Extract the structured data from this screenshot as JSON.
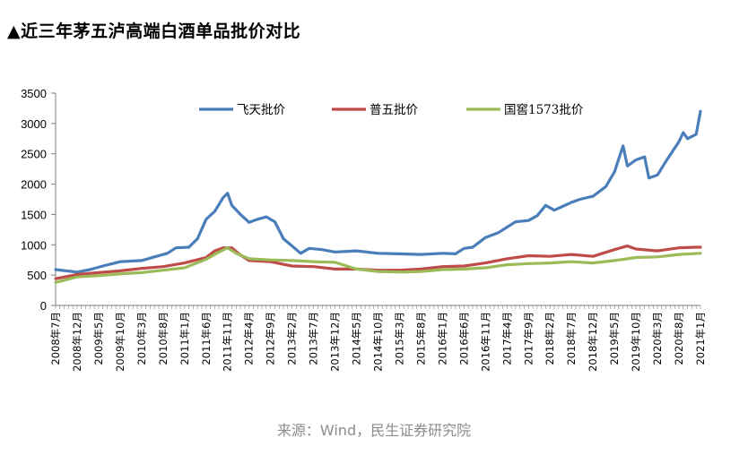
{
  "title": "▲近三年茅五泸高端白酒单品批价对比",
  "source": "来源：Wind，民生证券研究院",
  "chart_data": {
    "type": "line",
    "title": "▲近三年茅五泸高端白酒单品批价对比",
    "xlabel": "",
    "ylabel": "",
    "ylim": [
      0,
      3500
    ],
    "yticks": [
      0,
      500,
      1000,
      1500,
      2000,
      2500,
      3000,
      3500
    ],
    "grid": false,
    "legend_position": "top",
    "x_range": [
      "2008-07",
      "2021-01"
    ],
    "x_tick_labels": [
      "2008年7月",
      "2008年12月",
      "2009年5月",
      "2009年10月",
      "2010年3月",
      "2010年8月",
      "2011年1月",
      "2011年6月",
      "2011年11月",
      "2012年4月",
      "2012年9月",
      "2013年2月",
      "2013年7月",
      "2013年12月",
      "2014年5月",
      "2014年10月",
      "2015年3月",
      "2015年8月",
      "2016年1月",
      "2016年6月",
      "2016年11月",
      "2017年4月",
      "2017年9月",
      "2018年2月",
      "2018年7月",
      "2018年12月",
      "2019年5月",
      "2019年10月",
      "2020年3月",
      "2020年8月",
      "2021年1月"
    ],
    "series": [
      {
        "name": "飞天批价",
        "color": "#4a7ebb",
        "points": [
          [
            "2008-07",
            590
          ],
          [
            "2008-12",
            550
          ],
          [
            "2009-03",
            590
          ],
          [
            "2009-06",
            650
          ],
          [
            "2009-10",
            720
          ],
          [
            "2010-03",
            740
          ],
          [
            "2010-06",
            800
          ],
          [
            "2010-09",
            860
          ],
          [
            "2010-11",
            950
          ],
          [
            "2011-02",
            960
          ],
          [
            "2011-04",
            1100
          ],
          [
            "2011-06",
            1420
          ],
          [
            "2011-08",
            1550
          ],
          [
            "2011-10",
            1780
          ],
          [
            "2011-11",
            1850
          ],
          [
            "2011-12",
            1650
          ],
          [
            "2012-02",
            1500
          ],
          [
            "2012-04",
            1370
          ],
          [
            "2012-06",
            1420
          ],
          [
            "2012-08",
            1460
          ],
          [
            "2012-10",
            1380
          ],
          [
            "2012-12",
            1100
          ],
          [
            "2013-02",
            980
          ],
          [
            "2013-04",
            860
          ],
          [
            "2013-06",
            940
          ],
          [
            "2013-09",
            920
          ],
          [
            "2013-12",
            880
          ],
          [
            "2014-05",
            900
          ],
          [
            "2014-10",
            860
          ],
          [
            "2015-03",
            850
          ],
          [
            "2015-08",
            840
          ],
          [
            "2016-01",
            860
          ],
          [
            "2016-04",
            850
          ],
          [
            "2016-06",
            940
          ],
          [
            "2016-08",
            960
          ],
          [
            "2016-11",
            1120
          ],
          [
            "2017-02",
            1200
          ],
          [
            "2017-06",
            1380
          ],
          [
            "2017-09",
            1400
          ],
          [
            "2017-11",
            1480
          ],
          [
            "2018-01",
            1650
          ],
          [
            "2018-03",
            1570
          ],
          [
            "2018-07",
            1700
          ],
          [
            "2018-09",
            1750
          ],
          [
            "2018-12",
            1800
          ],
          [
            "2019-03",
            1960
          ],
          [
            "2019-05",
            2200
          ],
          [
            "2019-07",
            2630
          ],
          [
            "2019-08",
            2300
          ],
          [
            "2019-10",
            2400
          ],
          [
            "2019-12",
            2450
          ],
          [
            "2020-01",
            2100
          ],
          [
            "2020-03",
            2150
          ],
          [
            "2020-05",
            2380
          ],
          [
            "2020-08",
            2700
          ],
          [
            "2020-09",
            2850
          ],
          [
            "2020-10",
            2750
          ],
          [
            "2020-12",
            2820
          ],
          [
            "2021-01",
            3200
          ]
        ]
      },
      {
        "name": "普五批价",
        "color": "#be4b48",
        "points": [
          [
            "2008-07",
            440
          ],
          [
            "2008-12",
            510
          ],
          [
            "2009-05",
            540
          ],
          [
            "2009-10",
            570
          ],
          [
            "2010-03",
            610
          ],
          [
            "2010-08",
            640
          ],
          [
            "2011-01",
            700
          ],
          [
            "2011-06",
            790
          ],
          [
            "2011-08",
            900
          ],
          [
            "2011-10",
            950
          ],
          [
            "2011-12",
            950
          ],
          [
            "2012-02",
            830
          ],
          [
            "2012-04",
            740
          ],
          [
            "2012-09",
            720
          ],
          [
            "2013-02",
            650
          ],
          [
            "2013-07",
            640
          ],
          [
            "2013-12",
            600
          ],
          [
            "2014-05",
            600
          ],
          [
            "2014-10",
            580
          ],
          [
            "2015-03",
            580
          ],
          [
            "2015-08",
            600
          ],
          [
            "2016-01",
            640
          ],
          [
            "2016-06",
            650
          ],
          [
            "2016-11",
            700
          ],
          [
            "2017-04",
            770
          ],
          [
            "2017-09",
            820
          ],
          [
            "2018-02",
            810
          ],
          [
            "2018-07",
            840
          ],
          [
            "2018-12",
            810
          ],
          [
            "2019-05",
            920
          ],
          [
            "2019-08",
            980
          ],
          [
            "2019-10",
            930
          ],
          [
            "2020-03",
            900
          ],
          [
            "2020-08",
            950
          ],
          [
            "2020-12",
            960
          ],
          [
            "2021-01",
            960
          ]
        ]
      },
      {
        "name": "国窖1573批价",
        "color": "#9bbb59",
        "points": [
          [
            "2008-07",
            380
          ],
          [
            "2008-12",
            470
          ],
          [
            "2009-05",
            490
          ],
          [
            "2009-10",
            520
          ],
          [
            "2010-03",
            540
          ],
          [
            "2010-08",
            580
          ],
          [
            "2011-01",
            620
          ],
          [
            "2011-06",
            760
          ],
          [
            "2011-09",
            880
          ],
          [
            "2011-11",
            950
          ],
          [
            "2012-01",
            860
          ],
          [
            "2012-04",
            770
          ],
          [
            "2012-09",
            750
          ],
          [
            "2013-02",
            740
          ],
          [
            "2013-07",
            720
          ],
          [
            "2013-12",
            710
          ],
          [
            "2014-05",
            600
          ],
          [
            "2014-10",
            560
          ],
          [
            "2015-03",
            550
          ],
          [
            "2015-08",
            560
          ],
          [
            "2016-01",
            590
          ],
          [
            "2016-06",
            600
          ],
          [
            "2016-11",
            620
          ],
          [
            "2017-04",
            670
          ],
          [
            "2017-09",
            690
          ],
          [
            "2018-02",
            700
          ],
          [
            "2018-07",
            720
          ],
          [
            "2018-12",
            700
          ],
          [
            "2019-05",
            740
          ],
          [
            "2019-10",
            790
          ],
          [
            "2020-03",
            800
          ],
          [
            "2020-08",
            840
          ],
          [
            "2021-01",
            860
          ]
        ]
      }
    ]
  }
}
